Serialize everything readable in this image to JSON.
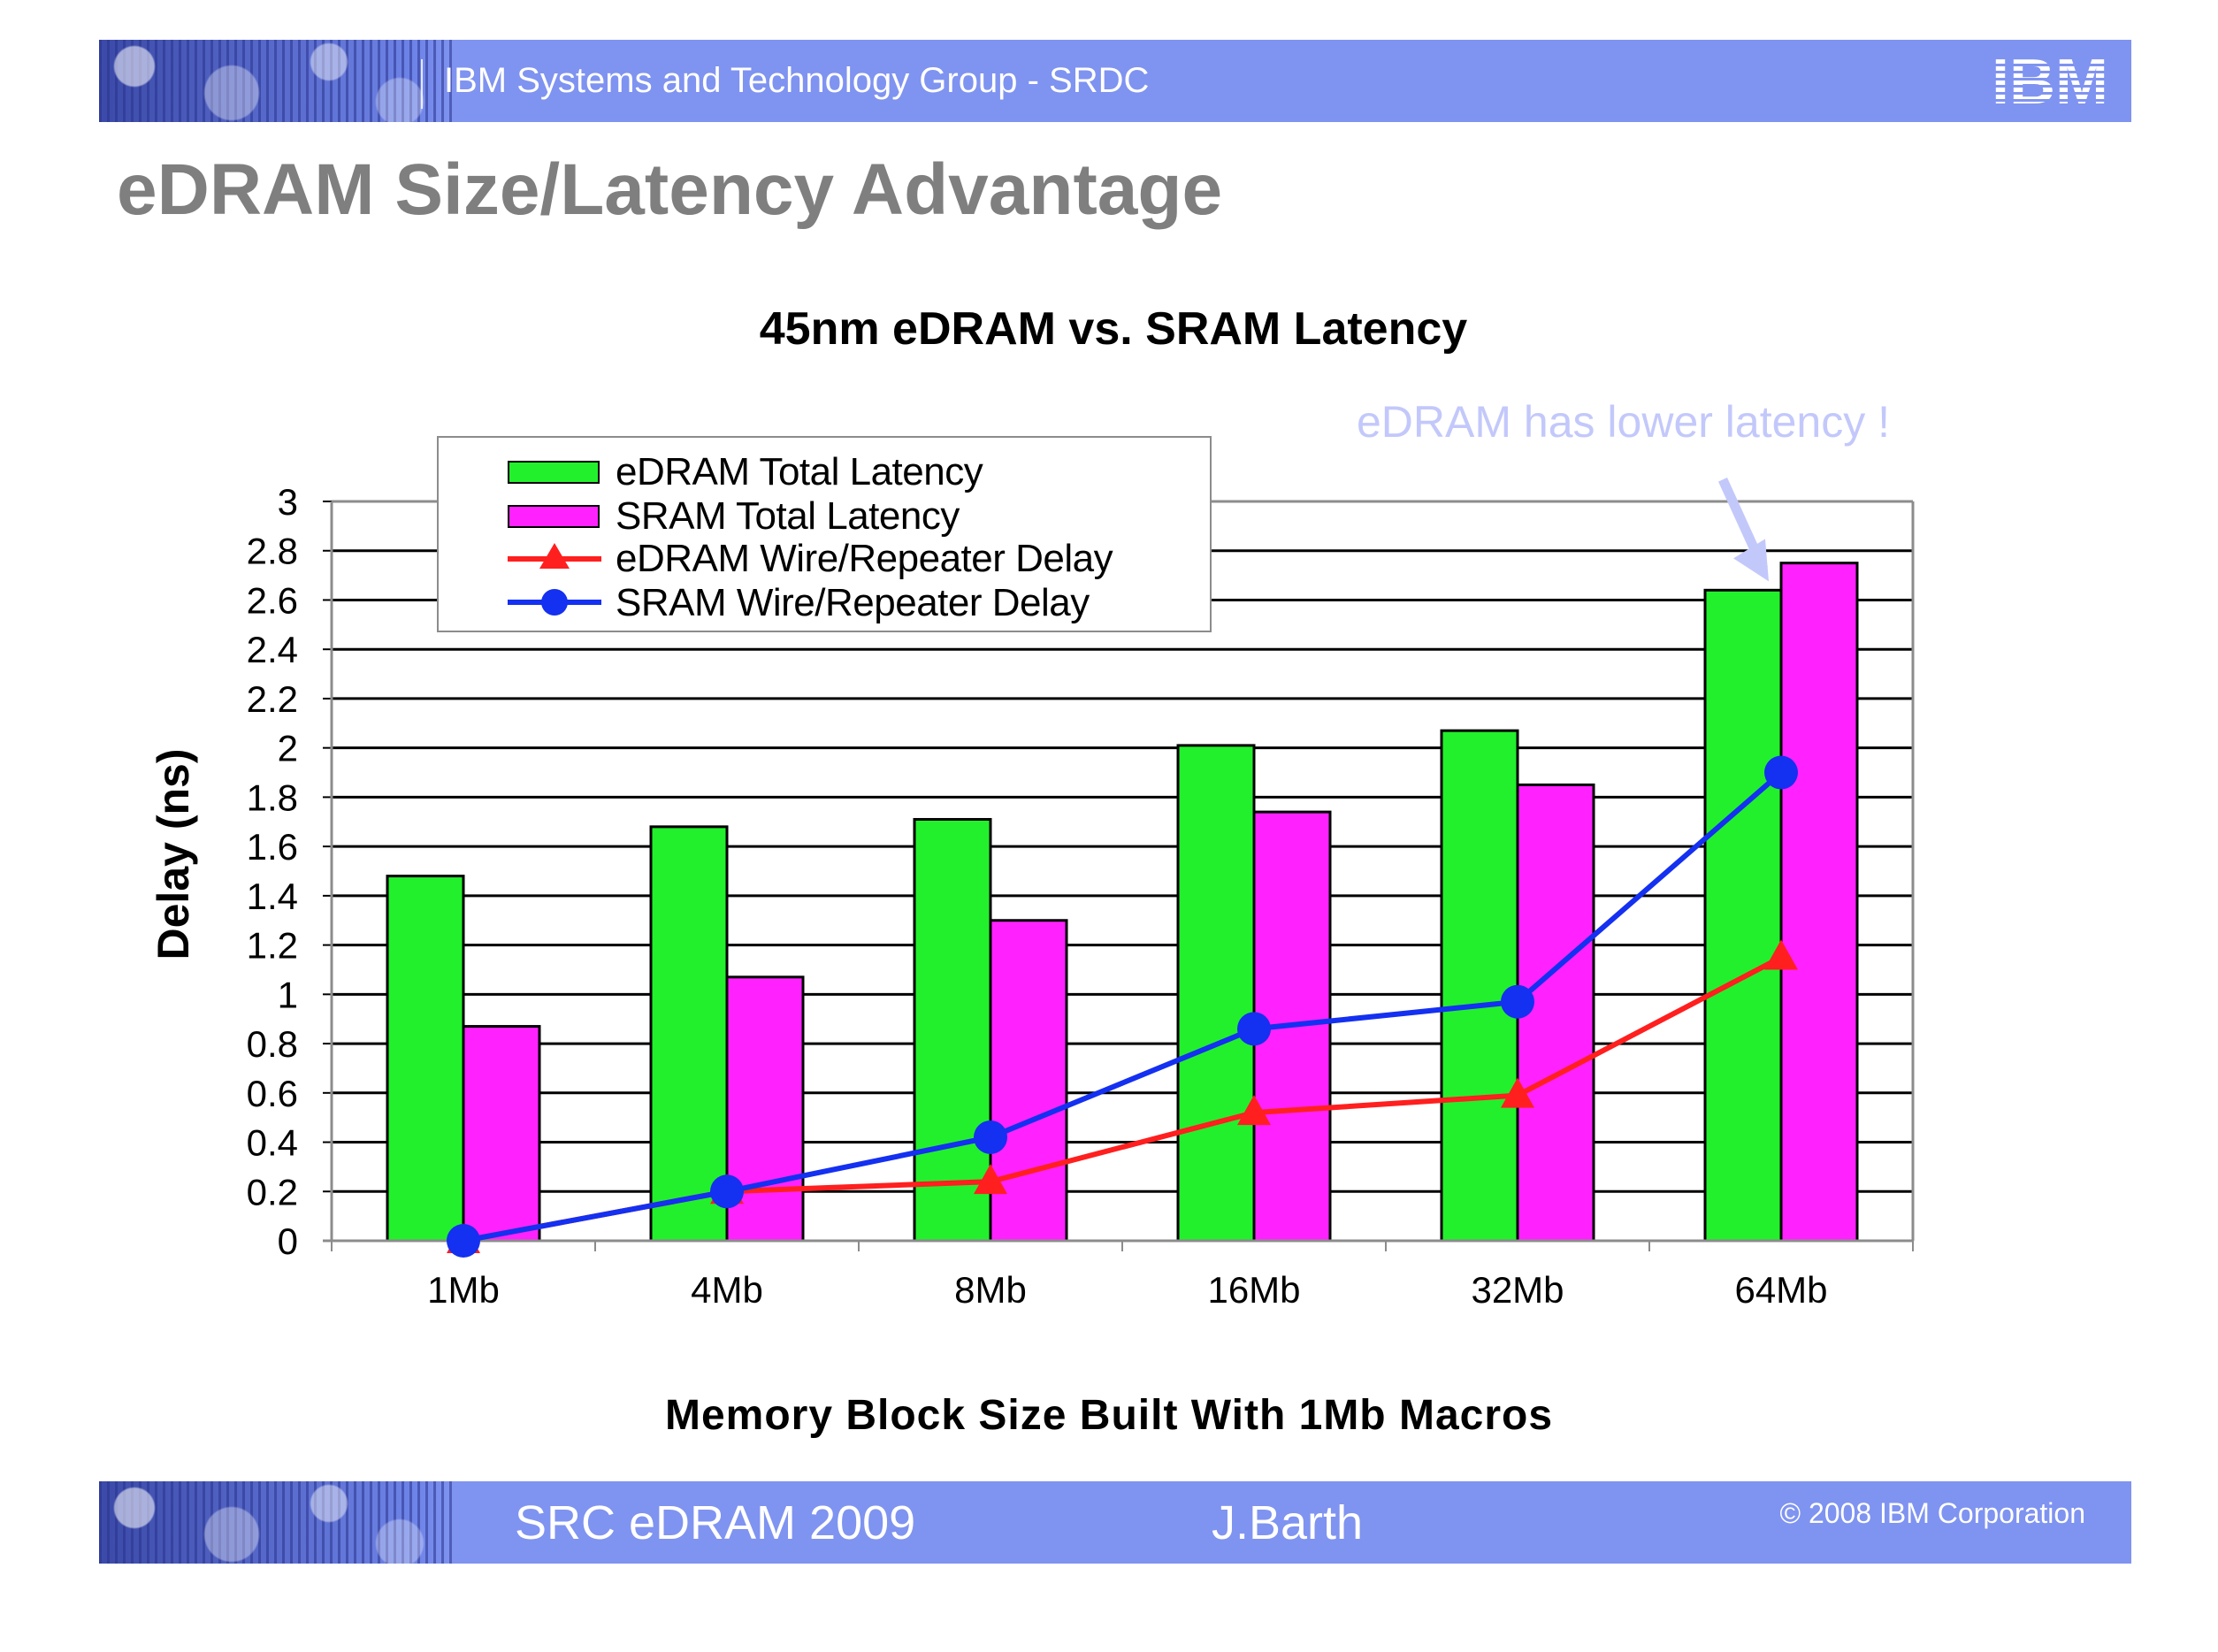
{
  "header": {
    "banner_title": "IBM Systems and Technology Group - SRDC",
    "logo_text": "IBM",
    "slide_title": "eDRAM Size/Latency Advantage"
  },
  "annotation": "eDRAM has lower latency !",
  "footer": {
    "event": "SRC eDRAM 2009",
    "author": "J.Barth",
    "copyright": "© 2008 IBM Corporation"
  },
  "colors": {
    "banner": "#7f93f0",
    "edram_bar": "#22f02c",
    "sram_bar": "#ff22ff",
    "edram_line": "#ff1f1f",
    "sram_line": "#1430f0",
    "annotation": "#c3c8fb"
  },
  "chart_data": {
    "type": "bar",
    "title": "45nm eDRAM vs. SRAM Latency",
    "xlabel": "Memory Block Size Built With 1Mb Macros",
    "ylabel": "Delay (ns)",
    "ylim": [
      0,
      3
    ],
    "yticks": [
      "0",
      "0.2",
      "0.4",
      "0.6",
      "0.8",
      "1",
      "1.2",
      "1.4",
      "1.6",
      "1.8",
      "2",
      "2.2",
      "2.4",
      "2.6",
      "2.8",
      "3"
    ],
    "grid": true,
    "legend_position": "top-left",
    "categories": [
      "1Mb",
      "4Mb",
      "8Mb",
      "16Mb",
      "32Mb",
      "64Mb"
    ],
    "series": [
      {
        "name": "eDRAM Total Latency",
        "type": "bar",
        "color": "#22f02c",
        "values": [
          1.48,
          1.68,
          1.71,
          2.01,
          2.07,
          2.64
        ]
      },
      {
        "name": "SRAM Total Latency",
        "type": "bar",
        "color": "#ff22ff",
        "values": [
          0.87,
          1.07,
          1.3,
          1.74,
          1.85,
          2.75
        ]
      },
      {
        "name": "eDRAM Wire/Repeater Delay",
        "type": "line",
        "marker": "triangle",
        "color": "#ff1f1f",
        "values": [
          0.0,
          0.2,
          0.24,
          0.52,
          0.59,
          1.15
        ]
      },
      {
        "name": "SRAM Wire/Repeater Delay",
        "type": "line",
        "marker": "circle",
        "color": "#1430f0",
        "values": [
          0.0,
          0.2,
          0.42,
          0.86,
          0.97,
          1.9
        ]
      }
    ]
  }
}
